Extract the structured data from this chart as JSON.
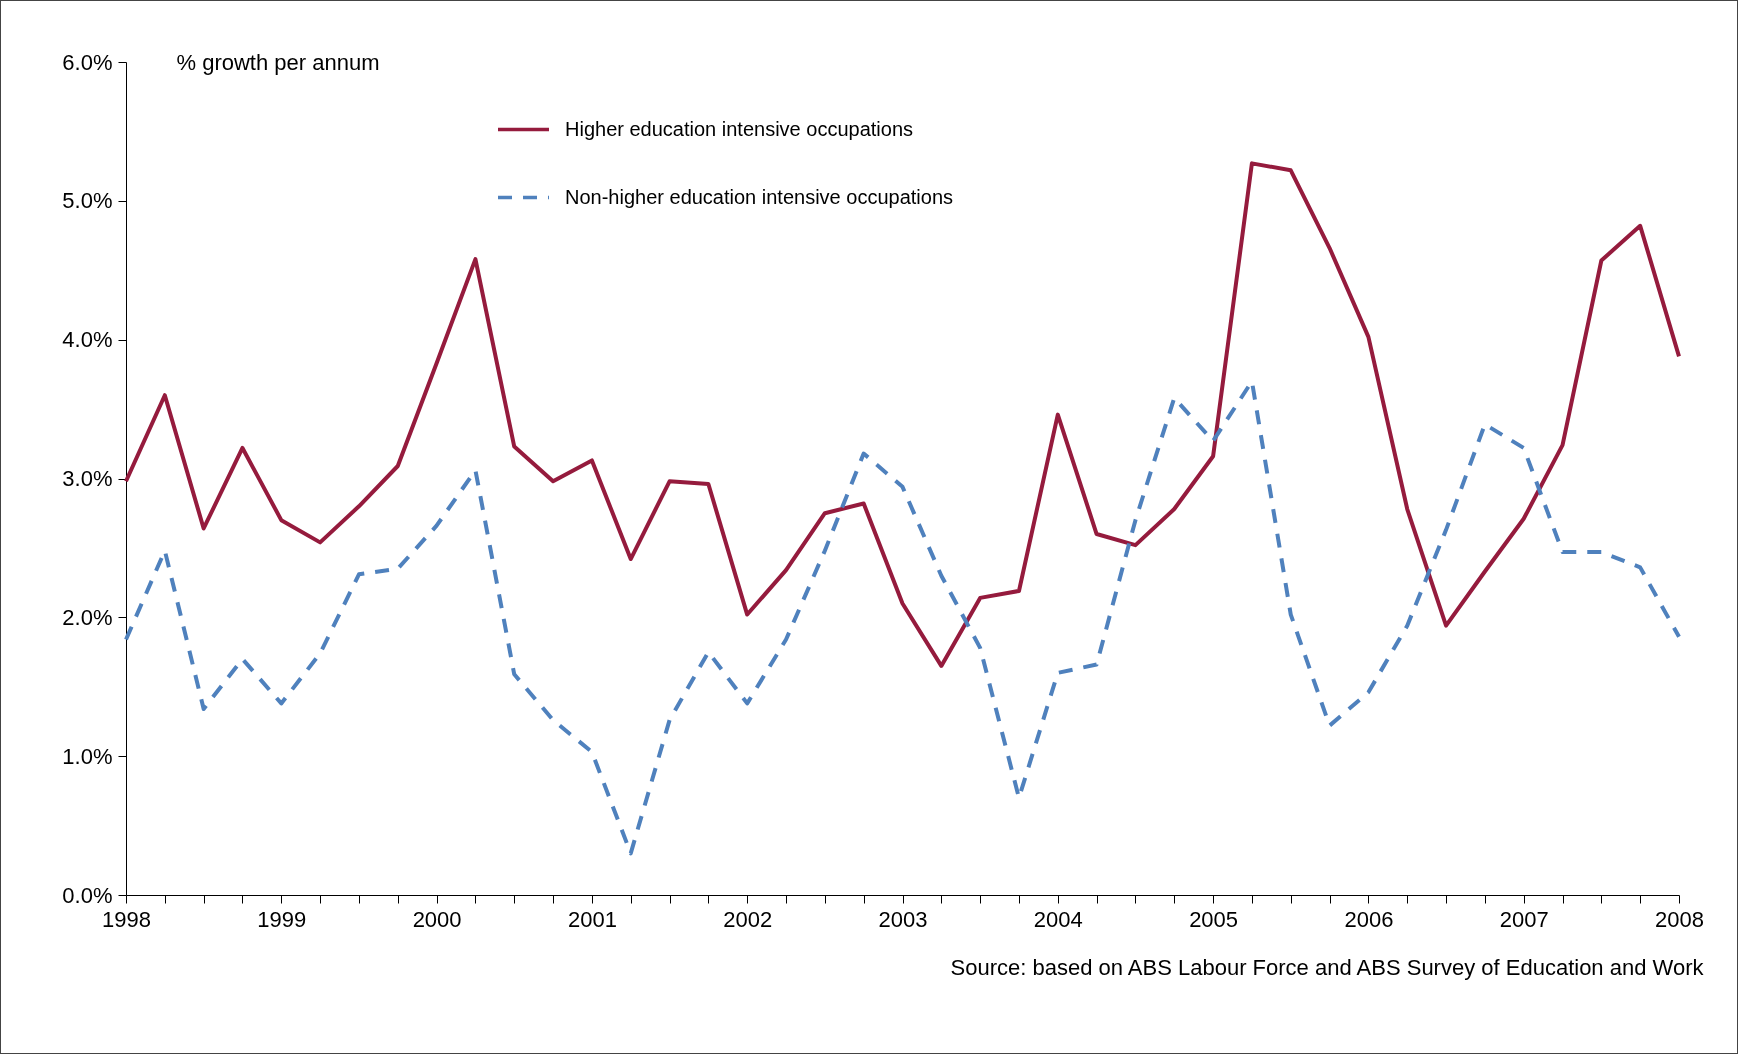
{
  "chart_data": {
    "type": "line",
    "ylabel": "% growth per annum",
    "annotations": [
      "Source: based on ABS Labour Force and ABS Survey of Education and Work"
    ],
    "x": [
      1998,
      1998.25,
      1998.5,
      1998.75,
      1999,
      1999.25,
      1999.5,
      1999.75,
      2000,
      2000.25,
      2000.5,
      2000.75,
      2001,
      2001.25,
      2001.5,
      2001.75,
      2002,
      2002.25,
      2002.5,
      2002.75,
      2003,
      2003.25,
      2003.5,
      2003.75,
      2004,
      2004.25,
      2004.5,
      2004.75,
      2005,
      2005.25,
      2005.5,
      2005.75,
      2006,
      2006.25,
      2006.5,
      2006.75,
      2007,
      2007.25,
      2007.5,
      2007.75,
      2008
    ],
    "series": [
      {
        "name": "Higher education intensive occupations",
        "color": "#951b3d",
        "line_style": "solid",
        "values": [
          2.98,
          3.6,
          2.64,
          3.22,
          2.7,
          2.54,
          2.8,
          3.09,
          3.83,
          4.58,
          3.23,
          2.98,
          3.13,
          2.42,
          2.98,
          2.96,
          2.02,
          2.34,
          2.75,
          2.82,
          2.1,
          1.65,
          2.14,
          2.19,
          3.46,
          2.6,
          2.52,
          2.78,
          3.16,
          5.27,
          5.22,
          4.66,
          4.02,
          2.78,
          1.94,
          2.33,
          2.71,
          3.24,
          4.57,
          4.82,
          3.88
        ]
      },
      {
        "name": "Non-higher education intensive occupations",
        "color": "#4f81bd",
        "line_style": "dashed",
        "values": [
          1.84,
          2.48,
          1.34,
          1.7,
          1.38,
          1.74,
          2.31,
          2.35,
          2.66,
          3.06,
          1.59,
          1.26,
          1.03,
          0.3,
          1.26,
          1.75,
          1.38,
          1.84,
          2.48,
          3.18,
          2.94,
          2.3,
          1.78,
          0.7,
          1.6,
          1.66,
          2.7,
          3.58,
          3.27,
          3.7,
          2.02,
          1.22,
          1.46,
          1.94,
          2.63,
          3.39,
          3.22,
          2.47,
          2.47,
          2.36,
          1.86
        ]
      }
    ],
    "xlim": [
      1998,
      2008
    ],
    "xticks": [
      1998,
      {
        "value": 1998.25,
        "label": null
      },
      {
        "value": 1998.5,
        "label": null
      },
      {
        "value": 1998.75,
        "label": null
      },
      1999,
      {
        "value": 1999.25,
        "label": null
      },
      {
        "value": 1999.5,
        "label": null
      },
      {
        "value": 1999.75,
        "label": null
      },
      2000,
      {
        "value": 2000.25,
        "label": null
      },
      {
        "value": 2000.5,
        "label": null
      },
      {
        "value": 2000.75,
        "label": null
      },
      2001,
      {
        "value": 2001.25,
        "label": null
      },
      {
        "value": 2001.5,
        "label": null
      },
      {
        "value": 2001.75,
        "label": null
      },
      2002,
      {
        "value": 2002.25,
        "label": null
      },
      {
        "value": 2002.5,
        "label": null
      },
      {
        "value": 2002.75,
        "label": null
      },
      2003,
      {
        "value": 2003.25,
        "label": null
      },
      {
        "value": 2003.5,
        "label": null
      },
      {
        "value": 2003.75,
        "label": null
      },
      2004,
      {
        "value": 2004.25,
        "label": null
      },
      {
        "value": 2004.5,
        "label": null
      },
      {
        "value": 2004.75,
        "label": null
      },
      2005,
      {
        "value": 2005.25,
        "label": null
      },
      {
        "value": 2005.5,
        "label": null
      },
      {
        "value": 2005.75,
        "label": null
      },
      2006,
      {
        "value": 2006.25,
        "label": null
      },
      {
        "value": 2006.5,
        "label": null
      },
      {
        "value": 2006.75,
        "label": null
      },
      2007,
      {
        "value": 2007.25,
        "label": null
      },
      {
        "value": 2007.5,
        "label": null
      },
      {
        "value": 2007.75,
        "label": null
      },
      2008
    ],
    "ylim": [
      0,
      6
    ],
    "yticks": [
      {
        "value": 0,
        "label": "0.0%"
      },
      {
        "value": 1,
        "label": "1.0%"
      },
      {
        "value": 2,
        "label": "2.0%"
      },
      {
        "value": 3,
        "label": "3.0%"
      },
      {
        "value": 4,
        "label": "4.0%"
      },
      {
        "value": 5,
        "label": "5.0%"
      },
      {
        "value": 6,
        "label": "6.0%"
      }
    ],
    "legend": "top",
    "grid": false
  }
}
